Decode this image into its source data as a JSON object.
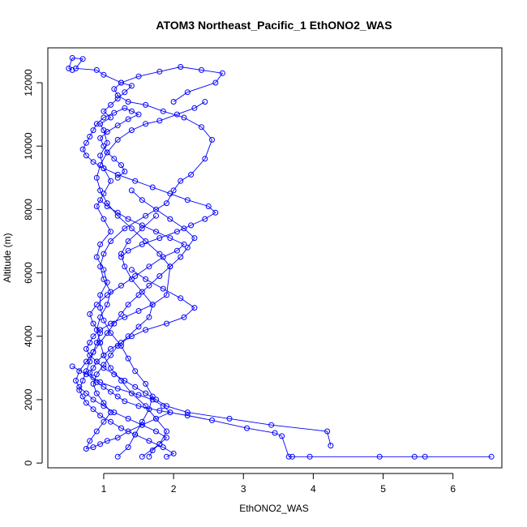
{
  "chart_data": {
    "type": "scatter",
    "title": "ATOM3 Northeast_Pacific_1 EthONO2_WAS",
    "xlabel": "EthONO2_WAS",
    "ylabel": "Altitude (m)",
    "xlim": [
      0.2,
      6.7
    ],
    "ylim": [
      -150,
      13100
    ],
    "xticks": [
      1,
      2,
      3,
      4,
      5,
      6
    ],
    "yticks": [
      0,
      2000,
      4000,
      6000,
      8000,
      10000,
      12000
    ],
    "grid": false,
    "marker": "open-circle",
    "connect_points": true,
    "color": "#0000ff",
    "series": [
      {
        "x": [
          1.2,
          1.35,
          1.45,
          1.55,
          1.65,
          1.7,
          1.6,
          1.45,
          1.35,
          1.25,
          1.1,
          1.0,
          0.95,
          0.95,
          1.05,
          1.0,
          0.9,
          0.95,
          1.1,
          1.0,
          0.9,
          1.0,
          1.1,
          1.0,
          0.95,
          1.05,
          1.0,
          0.95,
          1.1,
          1.0,
          1.1,
          1.2,
          1.3,
          1.4,
          1.25,
          1.0,
          0.9,
          0.6,
          0.7,
          0.55,
          0.5,
          0.55
        ],
        "y": [
          200,
          500,
          900,
          1300,
          1700,
          2100,
          2500,
          2900,
          3300,
          3700,
          4100,
          4500,
          4900,
          5300,
          5700,
          6100,
          6500,
          6900,
          7300,
          7700,
          8100,
          8500,
          8900,
          9300,
          9700,
          10100,
          10500,
          10700,
          10900,
          11100,
          11300,
          11500,
          11700,
          11900,
          12000,
          12250,
          12400,
          12450,
          12750,
          12780,
          12450,
          12400
        ]
      },
      {
        "x": [
          1.55,
          1.8,
          1.9,
          1.75,
          1.6,
          1.4,
          1.25,
          1.1,
          1.0,
          0.95,
          0.9,
          0.95,
          1.05,
          1.1,
          1.0,
          0.95,
          1.0,
          1.1,
          1.3,
          1.6,
          1.9,
          2.0,
          2.1,
          2.25,
          2.45,
          2.55,
          2.4,
          2.15,
          1.85,
          1.6,
          1.35,
          1.2,
          1.15,
          1.25,
          1.5,
          1.8,
          2.1,
          2.4,
          2.7,
          2.6,
          2.2,
          2.0
        ],
        "y": [
          200,
          600,
          1000,
          1400,
          1800,
          2200,
          2600,
          3000,
          3400,
          3800,
          4200,
          4600,
          5000,
          5400,
          5800,
          6200,
          6600,
          7000,
          7400,
          7800,
          8200,
          8600,
          8900,
          9100,
          9600,
          10200,
          10600,
          10900,
          11100,
          11300,
          11400,
          11600,
          11800,
          12000,
          12200,
          12350,
          12500,
          12400,
          12300,
          12000,
          11700,
          11400
        ]
      },
      {
        "x": [
          0.55,
          0.75,
          0.95,
          1.2,
          1.5,
          1.7,
          1.85,
          1.95,
          1.75,
          1.55,
          1.35,
          1.2,
          1.05,
          0.95,
          0.85,
          0.75,
          0.8,
          0.9,
          1.0,
          1.1,
          1.0,
          0.9,
          0.85,
          0.9,
          1.0,
          1.1,
          1.2,
          1.35,
          1.5,
          1.65,
          1.7,
          1.55,
          1.4,
          1.3,
          1.25,
          1.35,
          1.55,
          1.75
        ],
        "y": [
          3050,
          2800,
          2550,
          2350,
          2150,
          2000,
          1800,
          1600,
          1400,
          1200,
          1000,
          800,
          700,
          600,
          500,
          450,
          700,
          1000,
          1300,
          1600,
          1900,
          2200,
          2500,
          2800,
          3100,
          3400,
          3700,
          4000,
          4300,
          4600,
          5000,
          5400,
          5800,
          6200,
          6600,
          7000,
          7400,
          7800
        ]
      },
      {
        "x": [
          6.55,
          5.6,
          5.45,
          4.95,
          3.95,
          3.7,
          3.65,
          3.55,
          3.45,
          3.05,
          2.55,
          2.2,
          1.8,
          1.5,
          1.3,
          1.2,
          1.1,
          1.0,
          0.9,
          0.85,
          0.8,
          0.85,
          0.9,
          1.0,
          1.1,
          1.25,
          1.4,
          1.6,
          1.9,
          2.15,
          2.3,
          2.1,
          1.85,
          1.6,
          1.4
        ],
        "y": [
          200,
          200,
          200,
          200,
          200,
          200,
          200,
          850,
          950,
          1100,
          1350,
          1500,
          1650,
          1800,
          1950,
          2100,
          2250,
          2400,
          2550,
          2700,
          2850,
          3000,
          3200,
          3400,
          3600,
          3800,
          4000,
          4200,
          4400,
          4600,
          4900,
          5200,
          5500,
          5800,
          6100
        ]
      },
      {
        "x": [
          4.25,
          4.2,
          3.4,
          2.8,
          2.2,
          1.9,
          1.75,
          1.6,
          1.45,
          1.3,
          1.15,
          1.0,
          0.9,
          0.8,
          0.75,
          0.8,
          0.85,
          0.95,
          1.1,
          1.3,
          1.5,
          1.7,
          1.9,
          1.95,
          1.8,
          1.6,
          1.4,
          1.2,
          1.05,
          0.95,
          0.9,
          0.95,
          1.05,
          1.2,
          1.4,
          1.6,
          1.8,
          2.05,
          2.3,
          2.45
        ],
        "y": [
          550,
          1000,
          1200,
          1400,
          1600,
          1800,
          2000,
          2200,
          2400,
          2600,
          2800,
          3000,
          3200,
          3400,
          3600,
          3800,
          4000,
          4200,
          4400,
          4600,
          4800,
          5000,
          5300,
          6200,
          6600,
          7000,
          7400,
          7800,
          8200,
          8600,
          9000,
          9400,
          9800,
          10200,
          10500,
          10700,
          10800,
          11000,
          11200,
          11400
        ]
      },
      {
        "x": [
          1.9,
          2.0,
          1.85,
          1.65,
          1.45,
          1.25,
          1.1,
          0.95,
          0.85,
          0.75,
          0.7,
          0.65,
          0.7,
          0.75,
          0.8,
          0.85,
          0.9,
          0.95,
          0.85,
          0.8,
          0.9,
          1.05,
          1.25,
          1.45,
          1.65,
          1.85,
          2.05,
          2.15,
          1.95,
          1.75,
          1.55,
          1.35,
          1.2,
          1.05,
          0.95
        ],
        "y": [
          200,
          300,
          500,
          700,
          900,
          1100,
          1300,
          1500,
          1700,
          1900,
          2100,
          2300,
          2600,
          2900,
          3200,
          3500,
          3800,
          4100,
          4400,
          4700,
          5000,
          5300,
          5600,
          5900,
          6200,
          6500,
          6700,
          6900,
          7100,
          7300,
          7500,
          7700,
          7900,
          8100,
          8300
        ]
      },
      {
        "x": [
          1.65,
          1.7,
          1.8,
          1.9,
          1.75,
          1.55,
          1.35,
          1.15,
          1.0,
          0.85,
          0.75,
          0.65,
          0.6,
          0.65,
          0.75,
          0.85,
          0.95,
          1.05,
          1.15,
          1.25,
          1.35,
          1.5,
          1.65,
          1.8,
          1.95,
          2.1,
          2.2,
          2.3,
          2.15,
          1.95,
          1.75,
          1.55,
          1.4
        ],
        "y": [
          200,
          400,
          600,
          800,
          1000,
          1200,
          1400,
          1600,
          1800,
          2000,
          2200,
          2400,
          2600,
          2900,
          3200,
          3500,
          3800,
          4100,
          4400,
          4700,
          5000,
          5300,
          5600,
          5900,
          6200,
          6500,
          6800,
          7100,
          7400,
          7700,
          8000,
          8300,
          8600
        ]
      },
      {
        "x": [
          1.2,
          1.3,
          1.25,
          1.15,
          1.05,
          1.0,
          0.95,
          1.05,
          1.2,
          1.35,
          1.5,
          1.4,
          1.3,
          1.15,
          1.0,
          0.9,
          0.85,
          0.8,
          0.75,
          0.7,
          0.75,
          0.85,
          1.0,
          1.2,
          1.45,
          1.7,
          1.95,
          2.2,
          2.5,
          2.6,
          2.45,
          2.25,
          2.05,
          1.8,
          1.55,
          1.35,
          1.25
        ],
        "y": [
          9000,
          9200,
          9400,
          9600,
          9800,
          10000,
          10250,
          10450,
          10650,
          10850,
          11000,
          11100,
          11200,
          11050,
          10900,
          10700,
          10500,
          10300,
          10100,
          9900,
          9700,
          9500,
          9300,
          9100,
          8900,
          8700,
          8500,
          8300,
          8100,
          7900,
          7700,
          7500,
          7300,
          7100,
          6900,
          6700,
          6500
        ]
      }
    ]
  }
}
